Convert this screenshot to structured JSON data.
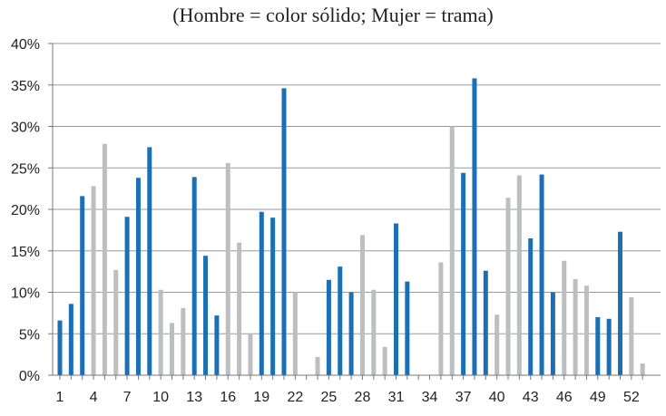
{
  "chart_data": {
    "type": "bar",
    "title": "(Hombre = color sólido; Mujer = trama)",
    "xlabel": "",
    "ylabel": "",
    "ylim": [
      0,
      40
    ],
    "y_ticks": [
      "0%",
      "5%",
      "10%",
      "15%",
      "20%",
      "25%",
      "30%",
      "35%",
      "40%"
    ],
    "x_ticks": [
      "1",
      "4",
      "7",
      "10",
      "13",
      "16",
      "19",
      "22",
      "25",
      "28",
      "31",
      "34",
      "37",
      "40",
      "43",
      "46",
      "49",
      "52"
    ],
    "grid": "horizontal",
    "colors": {
      "Hombre": "#1a6fb5",
      "Mujer": "#bcbec0"
    },
    "categories": [
      1,
      2,
      3,
      4,
      5,
      6,
      7,
      8,
      9,
      10,
      11,
      12,
      13,
      14,
      15,
      16,
      17,
      18,
      19,
      20,
      21,
      22,
      23,
      24,
      25,
      26,
      27,
      28,
      29,
      30,
      31,
      32,
      33,
      34,
      35,
      36,
      37,
      38,
      39,
      40,
      41,
      42,
      43,
      44,
      45,
      46,
      47,
      48,
      49,
      50,
      51,
      52,
      53
    ],
    "values": [
      6.6,
      8.6,
      21.6,
      22.8,
      27.9,
      12.7,
      19.1,
      23.8,
      27.5,
      10.3,
      6.3,
      8.1,
      23.9,
      14.4,
      7.2,
      25.6,
      16.0,
      5.0,
      19.7,
      19.0,
      34.6,
      10.0,
      0,
      2.2,
      11.5,
      13.1,
      10.0,
      16.9,
      10.3,
      3.4,
      18.3,
      11.3,
      0,
      0,
      13.6,
      30.0,
      24.4,
      35.8,
      12.6,
      7.3,
      21.4,
      24.1,
      16.5,
      24.2,
      10.0,
      13.8,
      11.6,
      10.8,
      7.0,
      6.8,
      17.3,
      9.4,
      1.4
    ],
    "groups": [
      "Hombre",
      "Hombre",
      "Hombre",
      "Mujer",
      "Mujer",
      "Mujer",
      "Hombre",
      "Hombre",
      "Hombre",
      "Mujer",
      "Mujer",
      "Mujer",
      "Hombre",
      "Hombre",
      "Hombre",
      "Mujer",
      "Mujer",
      "Mujer",
      "Hombre",
      "Hombre",
      "Hombre",
      "Mujer",
      "Mujer",
      "Mujer",
      "Hombre",
      "Hombre",
      "Hombre",
      "Mujer",
      "Mujer",
      "Mujer",
      "Hombre",
      "Hombre",
      "Hombre",
      "Mujer",
      "Mujer",
      "Mujer",
      "Hombre",
      "Hombre",
      "Hombre",
      "Mujer",
      "Mujer",
      "Mujer",
      "Hombre",
      "Hombre",
      "Hombre",
      "Mujer",
      "Mujer",
      "Mujer",
      "Hombre",
      "Hombre",
      "Hombre",
      "Mujer",
      "Mujer"
    ]
  }
}
